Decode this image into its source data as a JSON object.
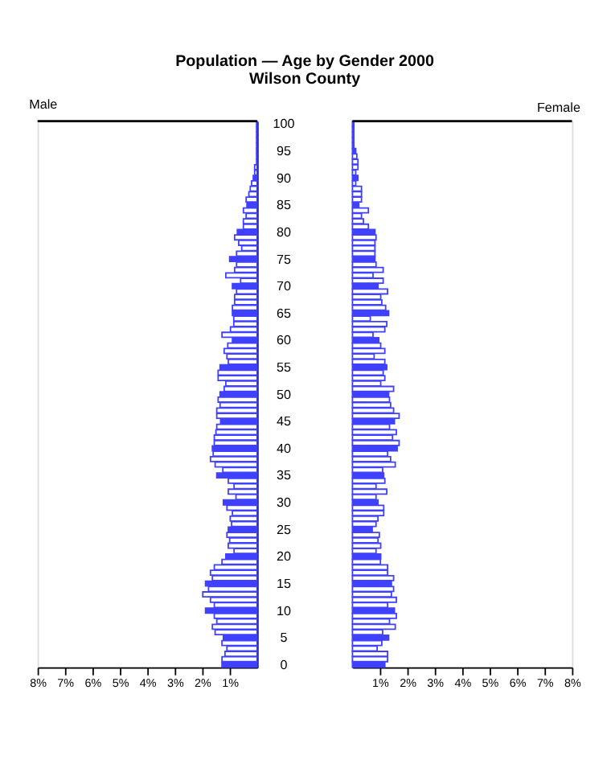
{
  "chart_data": [
    {
      "type": "bar",
      "orientation": "horizontal",
      "title": "Population — Age by Gender 2000",
      "subtitle": "Wilson County",
      "categories": [
        "100",
        null,
        null,
        null,
        null,
        "95",
        null,
        null,
        null,
        null,
        "90",
        null,
        null,
        null,
        null,
        "85",
        null,
        null,
        null,
        null,
        "80",
        null,
        null,
        null,
        null,
        "75",
        null,
        null,
        null,
        null,
        "70",
        null,
        null,
        null,
        null,
        "65",
        null,
        null,
        null,
        null,
        "60",
        null,
        null,
        null,
        null,
        "55",
        null,
        null,
        null,
        null,
        "50",
        null,
        null,
        null,
        null,
        "45",
        null,
        null,
        null,
        null,
        "40",
        null,
        null,
        null,
        null,
        "35",
        null,
        null,
        null,
        null,
        "30",
        null,
        null,
        null,
        null,
        "25",
        null,
        null,
        null,
        null,
        "20",
        null,
        null,
        null,
        null,
        "15",
        null,
        null,
        null,
        null,
        "10",
        null,
        null,
        null,
        null,
        "5",
        null,
        null,
        null,
        null,
        "0"
      ],
      "series": [
        {
          "name": "Male",
          "color": "#4040ff",
          "values": [
            0.02,
            0.02,
            0.02,
            0.02,
            0.02,
            0.02,
            0.02,
            0.02,
            0.09,
            0.09,
            0.14,
            0.2,
            0.25,
            0.3,
            0.4,
            0.37,
            0.5,
            0.4,
            0.5,
            0.5,
            0.72,
            0.82,
            0.67,
            0.56,
            0.75,
            1.0,
            0.75,
            0.82,
            1.14,
            0.6,
            0.9,
            0.75,
            0.82,
            0.82,
            0.9,
            0.9,
            0.85,
            0.85,
            0.97,
            1.28,
            0.9,
            1.07,
            1.2,
            1.1,
            1.05,
            1.35,
            1.42,
            1.42,
            1.14,
            1.2,
            1.35,
            1.42,
            1.35,
            1.47,
            1.47,
            1.33,
            1.47,
            1.5,
            1.56,
            1.56,
            1.63,
            1.6,
            1.7,
            1.53,
            1.25,
            1.47,
            1.05,
            0.84,
            1.05,
            0.77,
            1.23,
            1.1,
            0.9,
            0.98,
            0.93,
            1.05,
            1.1,
            1.0,
            1.05,
            0.84,
            1.14,
            1.28,
            1.56,
            1.7,
            1.63,
            1.88,
            1.77,
            1.98,
            1.7,
            1.56,
            1.88,
            1.56,
            1.47,
            1.63,
            1.53,
            1.23,
            1.28,
            1.1,
            1.17,
            1.28,
            1.28
          ]
        }
      ],
      "colors": [
        "#ffffff",
        "#ffffff",
        "#ffffff",
        "#ffffff",
        "#ffffff",
        "#4040ff",
        "#ffffff",
        "#ffffff",
        "#ffffff",
        "#ffffff",
        "#4040ff",
        "#ffffff",
        "#ffffff",
        "#ffffff",
        "#ffffff",
        "#4040ff",
        "#ffffff",
        "#ffffff",
        "#ffffff",
        "#ffffff",
        "#4040ff",
        "#ffffff",
        "#ffffff",
        "#ffffff",
        "#ffffff",
        "#4040ff",
        "#ffffff",
        "#ffffff",
        "#ffffff",
        "#ffffff",
        "#4040ff",
        "#ffffff",
        "#ffffff",
        "#ffffff",
        "#ffffff",
        "#4040ff",
        "#ffffff",
        "#ffffff",
        "#ffffff",
        "#ffffff",
        "#4040ff",
        "#ffffff",
        "#ffffff",
        "#ffffff",
        "#ffffff",
        "#4040ff",
        "#ffffff",
        "#ffffff",
        "#ffffff",
        "#ffffff",
        "#4040ff",
        "#ffffff",
        "#ffffff",
        "#ffffff",
        "#ffffff",
        "#4040ff",
        "#ffffff",
        "#ffffff",
        "#ffffff",
        "#ffffff",
        "#4040ff",
        "#ffffff",
        "#ffffff",
        "#ffffff",
        "#ffffff",
        "#4040ff",
        "#ffffff",
        "#ffffff",
        "#ffffff",
        "#ffffff",
        "#4040ff",
        "#ffffff",
        "#ffffff",
        "#ffffff",
        "#ffffff",
        "#4040ff",
        "#ffffff",
        "#ffffff",
        "#ffffff",
        "#ffffff",
        "#4040ff",
        "#ffffff",
        "#ffffff",
        "#ffffff",
        "#ffffff",
        "#4040ff",
        "#ffffff",
        "#ffffff",
        "#ffffff",
        "#ffffff",
        "#4040ff",
        "#ffffff",
        "#ffffff",
        "#ffffff",
        "#ffffff",
        "#4040ff",
        "#ffffff",
        "#ffffff",
        "#ffffff",
        "#ffffff",
        "#4040ff"
      ],
      "xlim": [
        8,
        0
      ],
      "xticks": [
        {
          "value": 8,
          "label": "8%"
        },
        {
          "value": 7,
          "label": "7%"
        },
        {
          "value": 6,
          "label": "6%"
        },
        {
          "value": 5,
          "label": "5%"
        },
        {
          "value": 4,
          "label": "4%"
        },
        {
          "value": 3,
          "label": "3%"
        },
        {
          "value": 2,
          "label": "2%"
        },
        {
          "value": 1,
          "label": "1%"
        }
      ],
      "grid": false
    },
    {
      "type": "bar",
      "orientation": "horizontal",
      "categories": [
        "100",
        null,
        null,
        null,
        null,
        "95",
        null,
        null,
        null,
        null,
        "90",
        null,
        null,
        null,
        null,
        "85",
        null,
        null,
        null,
        null,
        "80",
        null,
        null,
        null,
        null,
        "75",
        null,
        null,
        null,
        null,
        "70",
        null,
        null,
        null,
        null,
        "65",
        null,
        null,
        null,
        null,
        "60",
        null,
        null,
        null,
        null,
        "55",
        null,
        null,
        null,
        null,
        "50",
        null,
        null,
        null,
        null,
        "45",
        null,
        null,
        null,
        null,
        "40",
        null,
        null,
        null,
        null,
        "35",
        null,
        null,
        null,
        null,
        "30",
        null,
        null,
        null,
        null,
        "25",
        null,
        null,
        null,
        null,
        "20",
        null,
        null,
        null,
        null,
        "15",
        null,
        null,
        null,
        null,
        "10",
        null,
        null,
        null,
        null,
        "5",
        null,
        null,
        null,
        null,
        "0"
      ],
      "series": [
        {
          "name": "Female",
          "color": "#4040ff",
          "values": [
            0.05,
            0.05,
            0.05,
            0.05,
            0.05,
            0.12,
            0.16,
            0.2,
            0.2,
            0.12,
            0.2,
            0.12,
            0.33,
            0.33,
            0.33,
            0.23,
            0.58,
            0.33,
            0.4,
            0.58,
            0.82,
            0.86,
            0.82,
            0.82,
            0.82,
            0.82,
            0.86,
            1.12,
            0.75,
            1.12,
            0.93,
            1.28,
            1.03,
            1.07,
            1.21,
            1.32,
            0.65,
            1.25,
            1.18,
            0.75,
            0.96,
            1.03,
            1.18,
            0.79,
            1.18,
            1.25,
            1.12,
            1.18,
            1.03,
            1.5,
            1.32,
            1.35,
            1.39,
            1.5,
            1.7,
            1.53,
            1.35,
            1.6,
            1.46,
            1.7,
            1.63,
            1.28,
            1.39,
            1.56,
            1.1,
            1.14,
            1.18,
            0.86,
            1.25,
            0.86,
            0.93,
            1.14,
            1.14,
            0.93,
            0.86,
            0.72,
            0.98,
            0.93,
            1.03,
            0.86,
            1.03,
            1.02,
            1.28,
            1.28,
            1.5,
            1.42,
            1.5,
            1.42,
            1.6,
            1.28,
            1.53,
            1.6,
            1.35,
            1.56,
            1.1,
            1.32,
            1.07,
            0.9,
            1.28,
            1.28,
            1.18
          ]
        }
      ],
      "colors": [
        "#ffffff",
        "#ffffff",
        "#ffffff",
        "#ffffff",
        "#ffffff",
        "#4040ff",
        "#ffffff",
        "#ffffff",
        "#ffffff",
        "#ffffff",
        "#4040ff",
        "#ffffff",
        "#ffffff",
        "#ffffff",
        "#ffffff",
        "#4040ff",
        "#ffffff",
        "#ffffff",
        "#ffffff",
        "#ffffff",
        "#4040ff",
        "#ffffff",
        "#ffffff",
        "#ffffff",
        "#ffffff",
        "#4040ff",
        "#ffffff",
        "#ffffff",
        "#ffffff",
        "#ffffff",
        "#4040ff",
        "#ffffff",
        "#ffffff",
        "#ffffff",
        "#ffffff",
        "#4040ff",
        "#ffffff",
        "#ffffff",
        "#ffffff",
        "#ffffff",
        "#4040ff",
        "#ffffff",
        "#ffffff",
        "#ffffff",
        "#ffffff",
        "#4040ff",
        "#ffffff",
        "#ffffff",
        "#ffffff",
        "#ffffff",
        "#4040ff",
        "#ffffff",
        "#ffffff",
        "#ffffff",
        "#ffffff",
        "#4040ff",
        "#ffffff",
        "#ffffff",
        "#ffffff",
        "#ffffff",
        "#4040ff",
        "#ffffff",
        "#ffffff",
        "#ffffff",
        "#ffffff",
        "#4040ff",
        "#ffffff",
        "#ffffff",
        "#ffffff",
        "#ffffff",
        "#4040ff",
        "#ffffff",
        "#ffffff",
        "#ffffff",
        "#ffffff",
        "#4040ff",
        "#ffffff",
        "#ffffff",
        "#ffffff",
        "#ffffff",
        "#4040ff",
        "#ffffff",
        "#ffffff",
        "#ffffff",
        "#ffffff",
        "#4040ff",
        "#ffffff",
        "#ffffff",
        "#ffffff",
        "#ffffff",
        "#4040ff",
        "#ffffff",
        "#ffffff",
        "#ffffff",
        "#ffffff",
        "#4040ff",
        "#ffffff",
        "#ffffff",
        "#ffffff",
        "#ffffff",
        "#4040ff"
      ],
      "xlim": [
        0,
        8
      ],
      "xticks": [
        {
          "value": 1,
          "label": "1%"
        },
        {
          "value": 2,
          "label": "2%"
        },
        {
          "value": 3,
          "label": "3%"
        },
        {
          "value": 4,
          "label": "4%"
        },
        {
          "value": 5,
          "label": "5%"
        },
        {
          "value": 6,
          "label": "6%"
        },
        {
          "value": 7,
          "label": "7%"
        },
        {
          "value": 8,
          "label": "8%"
        }
      ],
      "tick_labels": "x",
      "grid": false
    }
  ]
}
